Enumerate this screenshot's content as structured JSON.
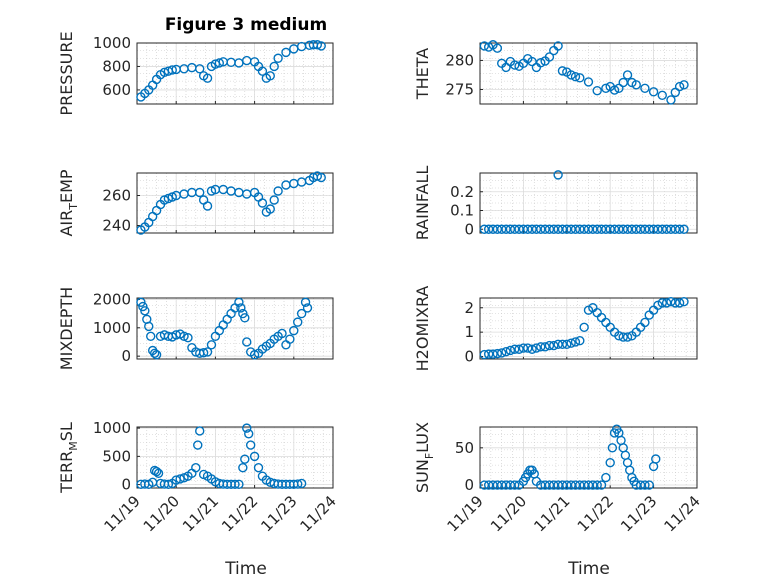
{
  "figure_title": "Figure 3 medium",
  "marker_color": "#0072BD",
  "chart_data": [
    {
      "type": "scatter",
      "name": "pressure",
      "ylabel": {
        "main": "PRESSURE",
        "sub": ""
      },
      "xlim": [
        0,
        5
      ],
      "ylim": [
        480,
        1000
      ],
      "yticks": [
        600,
        800,
        1000
      ],
      "ytick_labels": [
        "600",
        "800",
        "1000"
      ],
      "grid": true,
      "x": [
        0.1,
        0.2,
        0.3,
        0.4,
        0.5,
        0.6,
        0.7,
        0.8,
        0.9,
        1.0,
        1.2,
        1.4,
        1.6,
        1.7,
        1.8,
        1.9,
        2.0,
        2.1,
        2.2,
        2.4,
        2.6,
        2.8,
        3.0,
        3.1,
        3.2,
        3.3,
        3.4,
        3.5,
        3.6,
        3.8,
        4.0,
        4.2,
        4.4,
        4.5,
        4.6,
        4.7
      ],
      "y": [
        540,
        570,
        600,
        640,
        690,
        730,
        750,
        760,
        770,
        775,
        780,
        790,
        780,
        720,
        700,
        800,
        820,
        830,
        840,
        835,
        830,
        850,
        840,
        800,
        760,
        700,
        720,
        800,
        870,
        920,
        950,
        970,
        980,
        985,
        985,
        975
      ]
    },
    {
      "type": "scatter",
      "name": "theta",
      "ylabel": {
        "main": "THETA",
        "sub": ""
      },
      "xlim": [
        0,
        5
      ],
      "ylim": [
        272.5,
        283
      ],
      "yticks": [
        275,
        280
      ],
      "ytick_labels": [
        "275",
        "280"
      ],
      "grid": true,
      "x": [
        0.1,
        0.2,
        0.3,
        0.4,
        0.5,
        0.6,
        0.7,
        0.8,
        0.9,
        1.0,
        1.1,
        1.2,
        1.3,
        1.4,
        1.5,
        1.6,
        1.7,
        1.8,
        1.9,
        2.0,
        2.1,
        2.2,
        2.3,
        2.5,
        2.7,
        2.9,
        3.0,
        3.1,
        3.2,
        3.3,
        3.4,
        3.5,
        3.6,
        3.8,
        4.0,
        4.2,
        4.4,
        4.5,
        4.6,
        4.7
      ],
      "y": [
        282.5,
        282.3,
        282.7,
        282.1,
        279.5,
        278.8,
        279.8,
        279.2,
        279,
        279.5,
        280.3,
        279.8,
        278.8,
        279.6,
        279.9,
        280.6,
        281.7,
        282.5,
        278.2,
        278,
        277.5,
        277.2,
        277,
        276.3,
        274.8,
        275.2,
        275.5,
        274.9,
        275.2,
        276.2,
        277.5,
        276.2,
        275.8,
        275.2,
        274.6,
        274,
        273.2,
        274.5,
        275.5,
        275.8
      ]
    },
    {
      "type": "scatter",
      "name": "air_temp",
      "ylabel": {
        "main": "AIR",
        "sub": "T",
        "rest": "EMP"
      },
      "xlim": [
        0,
        5
      ],
      "ylim": [
        235,
        275
      ],
      "yticks": [
        240,
        260
      ],
      "ytick_labels": [
        "240",
        "260"
      ],
      "grid": true,
      "x": [
        0.1,
        0.2,
        0.3,
        0.4,
        0.5,
        0.6,
        0.7,
        0.8,
        0.9,
        1.0,
        1.2,
        1.4,
        1.6,
        1.7,
        1.8,
        1.9,
        2.0,
        2.2,
        2.4,
        2.6,
        2.8,
        3.0,
        3.1,
        3.2,
        3.3,
        3.4,
        3.5,
        3.6,
        3.8,
        4.0,
        4.2,
        4.4,
        4.5,
        4.6,
        4.7
      ],
      "y": [
        237,
        239,
        242,
        246,
        250,
        254,
        257,
        258,
        259,
        260,
        261,
        262,
        262,
        257,
        253,
        263,
        264,
        264,
        263,
        262,
        261,
        262,
        259,
        255,
        249,
        251,
        257,
        263,
        267,
        268,
        269,
        270,
        272,
        273,
        272
      ]
    },
    {
      "type": "scatter",
      "name": "rainfall",
      "ylabel": {
        "main": "RAINFALL",
        "sub": ""
      },
      "xlim": [
        0,
        5
      ],
      "ylim": [
        -0.02,
        0.3
      ],
      "yticks": [
        0,
        0.1,
        0.2
      ],
      "ytick_labels": [
        "0",
        "0.1",
        "0.2"
      ],
      "grid": true,
      "x": [
        0.1,
        0.2,
        0.3,
        0.4,
        0.5,
        0.6,
        0.7,
        0.8,
        0.9,
        1.0,
        1.1,
        1.2,
        1.3,
        1.4,
        1.5,
        1.6,
        1.7,
        1.8,
        1.9,
        2.0,
        2.1,
        2.2,
        2.3,
        2.4,
        2.5,
        2.6,
        2.7,
        2.8,
        2.9,
        3.0,
        3.1,
        3.2,
        3.3,
        3.4,
        3.5,
        3.6,
        3.7,
        3.8,
        3.9,
        4.0,
        4.1,
        4.2,
        4.3,
        4.4,
        4.5,
        4.6,
        4.7
      ],
      "y": [
        0,
        0,
        0,
        0,
        0,
        0,
        0,
        0,
        0,
        0,
        0,
        0,
        0,
        0,
        0,
        0,
        0,
        0,
        0,
        0,
        0,
        0,
        0,
        0,
        0,
        0,
        0,
        0,
        0,
        0,
        0,
        0,
        0,
        0,
        0,
        0,
        0,
        0,
        0,
        0,
        0,
        0,
        0,
        0,
        0,
        0,
        0
      ],
      "extra_points": [
        {
          "x": 1.8,
          "y": 0.29
        }
      ]
    },
    {
      "type": "scatter",
      "name": "mixdepth",
      "ylabel": {
        "main": "MIXDEPTH",
        "sub": ""
      },
      "xlim": [
        0,
        5
      ],
      "ylim": [
        -100,
        2050
      ],
      "yticks": [
        0,
        1000,
        2000
      ],
      "ytick_labels": [
        "0",
        "1000",
        "2000"
      ],
      "grid": true,
      "x": [
        0.1,
        0.15,
        0.2,
        0.25,
        0.3,
        0.35,
        0.4,
        0.45,
        0.5,
        0.6,
        0.7,
        0.8,
        0.9,
        1.0,
        1.1,
        1.2,
        1.3,
        1.4,
        1.5,
        1.6,
        1.7,
        1.8,
        1.9,
        2.0,
        2.1,
        2.2,
        2.3,
        2.4,
        2.5,
        2.6,
        2.65,
        2.7,
        2.75,
        2.8,
        2.9,
        3.0,
        3.1,
        3.2,
        3.3,
        3.4,
        3.5,
        3.6,
        3.7,
        3.8,
        3.9,
        4.0,
        4.1,
        4.2,
        4.3,
        4.35
      ],
      "y": [
        1900,
        1750,
        1600,
        1300,
        1050,
        700,
        200,
        100,
        50,
        700,
        750,
        700,
        680,
        750,
        780,
        700,
        650,
        300,
        150,
        100,
        120,
        150,
        400,
        700,
        900,
        1100,
        1300,
        1500,
        1700,
        1900,
        1700,
        1500,
        1350,
        500,
        150,
        50,
        100,
        250,
        350,
        450,
        600,
        700,
        800,
        400,
        600,
        900,
        1200,
        1500,
        1900,
        1700
      ]
    },
    {
      "type": "scatter",
      "name": "h2omixra",
      "ylabel": {
        "main": "H2OMIXRA",
        "sub": ""
      },
      "xlim": [
        0,
        5
      ],
      "ylim": [
        -0.1,
        2.4
      ],
      "yticks": [
        0,
        1,
        2
      ],
      "ytick_labels": [
        "0",
        "1",
        "2"
      ],
      "grid": true,
      "x": [
        0.1,
        0.2,
        0.3,
        0.4,
        0.5,
        0.6,
        0.7,
        0.8,
        0.9,
        1.0,
        1.1,
        1.2,
        1.3,
        1.4,
        1.5,
        1.6,
        1.7,
        1.8,
        1.9,
        2.0,
        2.1,
        2.2,
        2.3,
        2.4,
        2.5,
        2.6,
        2.7,
        2.8,
        2.9,
        3.0,
        3.1,
        3.2,
        3.3,
        3.4,
        3.5,
        3.6,
        3.7,
        3.8,
        3.9,
        4.0,
        4.1,
        4.2,
        4.3,
        4.4,
        4.5,
        4.6,
        4.7
      ],
      "y": [
        0.08,
        0.1,
        0.1,
        0.12,
        0.15,
        0.2,
        0.25,
        0.3,
        0.3,
        0.35,
        0.35,
        0.3,
        0.35,
        0.4,
        0.4,
        0.45,
        0.45,
        0.5,
        0.5,
        0.5,
        0.55,
        0.6,
        0.65,
        1.2,
        1.9,
        2.0,
        1.8,
        1.6,
        1.4,
        1.2,
        1.0,
        0.85,
        0.8,
        0.8,
        0.85,
        1.0,
        1.2,
        1.4,
        1.7,
        1.9,
        2.1,
        2.2,
        2.2,
        2.25,
        2.2,
        2.2,
        2.25
      ]
    },
    {
      "type": "scatter",
      "name": "terr_msl",
      "ylabel": {
        "main": "TERR",
        "sub": "M",
        "rest": "SL"
      },
      "xlim": [
        0,
        5
      ],
      "ylim": [
        -60,
        1020
      ],
      "yticks": [
        0,
        500,
        1000
      ],
      "ytick_labels": [
        "0",
        "500",
        "1000"
      ],
      "grid": true,
      "x": [
        0.1,
        0.2,
        0.3,
        0.4,
        0.45,
        0.5,
        0.55,
        0.6,
        0.7,
        0.8,
        0.9,
        1.0,
        1.1,
        1.2,
        1.3,
        1.4,
        1.5,
        1.55,
        1.6,
        1.7,
        1.8,
        1.9,
        2.0,
        2.1,
        2.2,
        2.3,
        2.4,
        2.5,
        2.6,
        2.7,
        2.75,
        2.8,
        2.85,
        2.9,
        3.0,
        3.1,
        3.2,
        3.3,
        3.4,
        3.5,
        3.6,
        3.7,
        3.8,
        3.9,
        4.0,
        4.1,
        4.2
      ],
      "y": [
        5,
        10,
        5,
        40,
        250,
        230,
        200,
        20,
        10,
        5,
        20,
        80,
        100,
        120,
        150,
        200,
        300,
        700,
        950,
        180,
        150,
        100,
        50,
        20,
        10,
        5,
        5,
        5,
        5,
        300,
        450,
        1000,
        900,
        700,
        500,
        300,
        150,
        80,
        40,
        20,
        10,
        5,
        5,
        5,
        5,
        10,
        20
      ]
    },
    {
      "type": "scatter",
      "name": "sun_flux",
      "ylabel": {
        "main": "SUN",
        "sub": "F",
        "rest": "LUX"
      },
      "xlim": [
        0,
        5
      ],
      "ylim": [
        -4,
        78
      ],
      "yticks": [
        0,
        50
      ],
      "ytick_labels": [
        "0",
        "50"
      ],
      "grid": true,
      "x": [
        0.1,
        0.2,
        0.3,
        0.4,
        0.5,
        0.6,
        0.7,
        0.8,
        0.9,
        1.0,
        1.05,
        1.1,
        1.15,
        1.2,
        1.25,
        1.3,
        1.4,
        1.5,
        1.6,
        1.7,
        1.8,
        1.9,
        2.0,
        2.1,
        2.2,
        2.3,
        2.4,
        2.5,
        2.6,
        2.7,
        2.8,
        2.9,
        3.0,
        3.05,
        3.1,
        3.15,
        3.2,
        3.25,
        3.3,
        3.35,
        3.4,
        3.45,
        3.5,
        3.55,
        3.6,
        3.7,
        3.8,
        3.9,
        4.0,
        4.05
      ],
      "y": [
        0,
        0,
        0,
        0,
        0,
        0,
        0,
        0,
        0,
        5,
        10,
        15,
        20,
        20,
        15,
        5,
        0,
        0,
        0,
        0,
        0,
        0,
        0,
        0,
        0,
        0,
        0,
        0,
        0,
        0,
        0,
        10,
        30,
        50,
        70,
        75,
        70,
        60,
        50,
        40,
        30,
        20,
        10,
        5,
        0,
        0,
        0,
        0,
        25,
        35
      ]
    }
  ],
  "x_tick_labels": [
    "11/19",
    "11/20",
    "11/21",
    "11/22",
    "11/23",
    "11/24"
  ],
  "x_axis_label": "Time"
}
